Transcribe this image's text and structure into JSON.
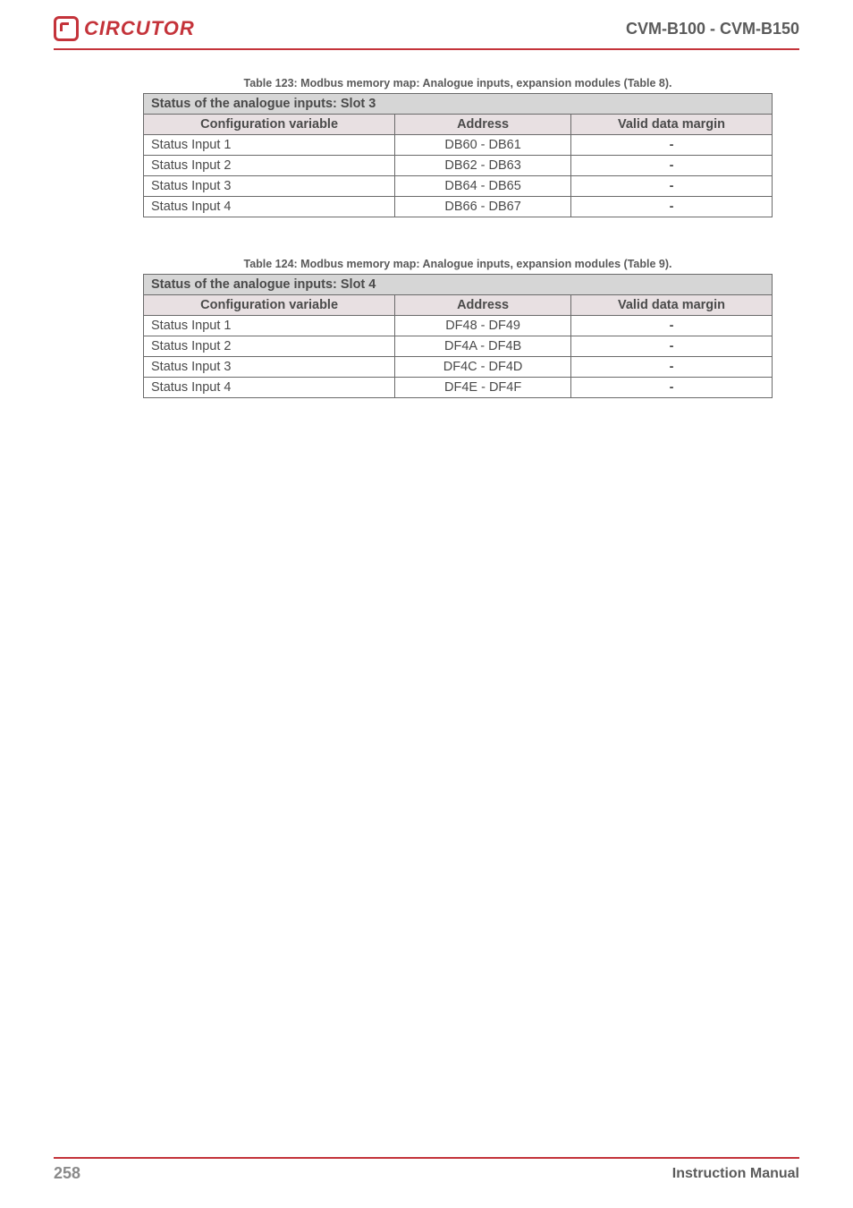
{
  "header": {
    "brand": "CIRCUTOR",
    "title": "CVM-B100 - CVM-B150"
  },
  "tables": [
    {
      "caption": "Table 123: Modbus memory map: Analogue inputs, expansion modules (Table 8).",
      "title": "Status of the analogue inputs: Slot 3",
      "columns": [
        "Configuration variable",
        "Address",
        "Valid data margin"
      ],
      "rows": [
        [
          "Status Input 1",
          "DB60 - DB61",
          "-"
        ],
        [
          "Status Input 2",
          "DB62 - DB63",
          "-"
        ],
        [
          "Status Input 3",
          "DB64 - DB65",
          "-"
        ],
        [
          "Status Input 4",
          "DB66 - DB67",
          "-"
        ]
      ]
    },
    {
      "caption": "Table 124: Modbus memory map: Analogue inputs, expansion modules (Table 9).",
      "title": "Status of the analogue inputs: Slot 4",
      "columns": [
        "Configuration variable",
        "Address",
        "Valid data margin"
      ],
      "rows": [
        [
          "Status Input 1",
          "DF48 - DF49",
          "-"
        ],
        [
          "Status Input 2",
          "DF4A - DF4B",
          "-"
        ],
        [
          "Status Input 3",
          "DF4C - DF4D",
          "-"
        ],
        [
          "Status Input 4",
          "DF4E - DF4F",
          "-"
        ]
      ]
    }
  ],
  "footer": {
    "page": "258",
    "label": "Instruction Manual"
  },
  "styles": {
    "accent_color": "#c4333a",
    "header_bg": "#d6d6d6",
    "subheader_bg": "#e8e0e2",
    "subheader_text": "#8a3a3e",
    "border_color": "#6a6a6a",
    "body_text": "#5a5a5a"
  }
}
